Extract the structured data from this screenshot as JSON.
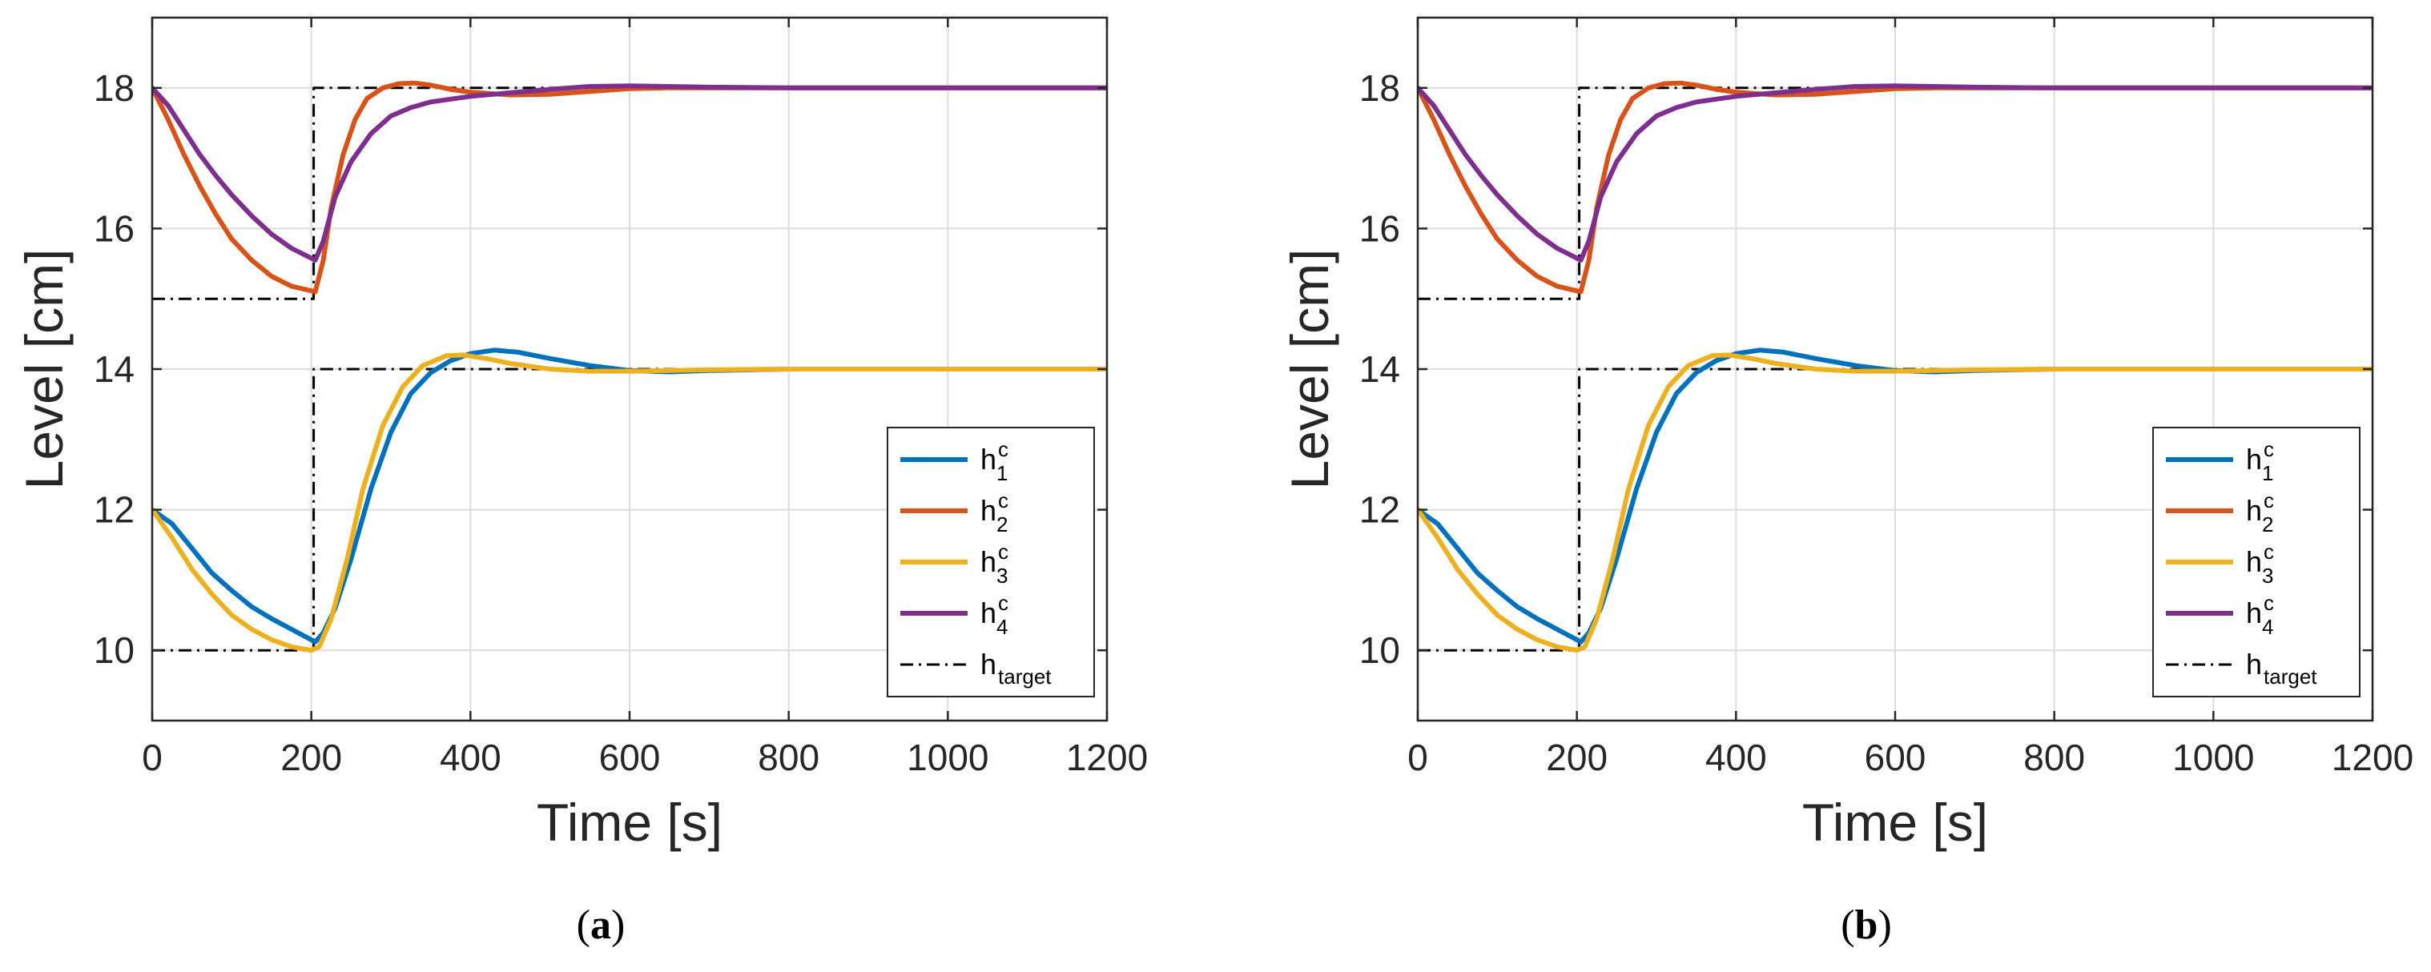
{
  "chart_data": [
    {
      "type": "line",
      "caption": "(a)",
      "caption_letter": "a",
      "xlabel": "Time [s]",
      "ylabel": "Level [cm]",
      "xlim": [
        0,
        1200
      ],
      "ylim": [
        9,
        19
      ],
      "xticks": [
        0,
        200,
        400,
        600,
        800,
        1000,
        1200
      ],
      "yticks": [
        10,
        12,
        14,
        16,
        18
      ],
      "grid": true,
      "legend_position": "bottom-right",
      "series": [
        {
          "name": "h_1^c",
          "label_base": "h",
          "label_sub": "1",
          "label_sup": "c",
          "color": "#0072BD",
          "style": "solid",
          "x": [
            0,
            25,
            50,
            75,
            100,
            125,
            150,
            175,
            205,
            215,
            230,
            250,
            275,
            300,
            325,
            350,
            375,
            400,
            430,
            460,
            500,
            550,
            600,
            650,
            700,
            800,
            900,
            1000,
            1100,
            1200
          ],
          "y": [
            12.0,
            11.8,
            11.45,
            11.1,
            10.85,
            10.62,
            10.45,
            10.3,
            10.12,
            10.25,
            10.6,
            11.3,
            12.3,
            13.1,
            13.65,
            13.95,
            14.12,
            14.22,
            14.27,
            14.24,
            14.15,
            14.05,
            13.98,
            13.96,
            13.98,
            14.0,
            14.0,
            14.0,
            14.0,
            14.0
          ]
        },
        {
          "name": "h_2^c",
          "label_base": "h",
          "label_sub": "2",
          "label_sup": "c",
          "color": "#D95319",
          "style": "solid",
          "x": [
            0,
            20,
            40,
            60,
            80,
            100,
            125,
            150,
            175,
            205,
            215,
            225,
            240,
            255,
            270,
            290,
            310,
            330,
            350,
            375,
            400,
            450,
            500,
            550,
            600,
            650,
            700,
            800,
            1000,
            1200
          ],
          "y": [
            18.0,
            17.55,
            17.05,
            16.6,
            16.2,
            15.85,
            15.55,
            15.32,
            15.18,
            15.1,
            15.55,
            16.3,
            17.05,
            17.55,
            17.85,
            18.0,
            18.06,
            18.07,
            18.04,
            17.98,
            17.94,
            17.9,
            17.91,
            17.95,
            17.99,
            18.0,
            18.0,
            18.0,
            18.0,
            18.0
          ]
        },
        {
          "name": "h_3^c",
          "label_base": "h",
          "label_sub": "3",
          "label_sup": "c",
          "color": "#EDB120",
          "style": "solid",
          "x": [
            0,
            25,
            50,
            75,
            100,
            125,
            150,
            175,
            200,
            210,
            225,
            245,
            265,
            290,
            315,
            340,
            370,
            390,
            420,
            450,
            500,
            550,
            600,
            700,
            800,
            1000,
            1200
          ],
          "y": [
            12.0,
            11.6,
            11.15,
            10.8,
            10.5,
            10.3,
            10.15,
            10.05,
            10.0,
            10.05,
            10.45,
            11.3,
            12.3,
            13.2,
            13.75,
            14.05,
            14.19,
            14.2,
            14.15,
            14.08,
            14.0,
            13.97,
            13.97,
            13.99,
            14.0,
            14.0,
            14.0
          ]
        },
        {
          "name": "h_4^c",
          "label_base": "h",
          "label_sub": "4",
          "label_sup": "c",
          "color": "#7E2F8E",
          "style": "solid",
          "x": [
            0,
            20,
            40,
            60,
            80,
            100,
            125,
            150,
            175,
            205,
            215,
            230,
            250,
            275,
            300,
            325,
            350,
            400,
            450,
            500,
            550,
            600,
            650,
            700,
            800,
            1000,
            1200
          ],
          "y": [
            18.0,
            17.75,
            17.4,
            17.05,
            16.75,
            16.48,
            16.18,
            15.92,
            15.72,
            15.55,
            15.82,
            16.45,
            16.95,
            17.35,
            17.6,
            17.72,
            17.8,
            17.88,
            17.93,
            17.98,
            18.02,
            18.03,
            18.02,
            18.01,
            18.0,
            18.0,
            18.0
          ]
        },
        {
          "name": "h_target",
          "label_base": "h",
          "label_sub": "target",
          "label_sup": "",
          "color": "#000000",
          "style": "dashdot",
          "x": [
            0,
            203,
            203,
            1200
          ],
          "y": [
            15.0,
            15.0,
            18.0,
            18.0
          ]
        },
        {
          "name": "h_target_lower",
          "legend": false,
          "color": "#000000",
          "style": "dashdot",
          "x": [
            0,
            203,
            203,
            1200
          ],
          "y": [
            10.0,
            10.0,
            14.0,
            14.0
          ]
        }
      ]
    },
    {
      "type": "line",
      "caption": "(b)",
      "caption_letter": "b",
      "xlabel": "Time [s]",
      "ylabel": "Level [cm]",
      "xlim": [
        0,
        1200
      ],
      "ylim": [
        9,
        19
      ],
      "xticks": [
        0,
        200,
        400,
        600,
        800,
        1000,
        1200
      ],
      "yticks": [
        10,
        12,
        14,
        16,
        18
      ],
      "grid": true,
      "legend_position": "bottom-right",
      "series": [
        {
          "name": "h_1^c",
          "label_base": "h",
          "label_sub": "1",
          "label_sup": "c",
          "color": "#0072BD",
          "style": "solid",
          "x": [
            0,
            25,
            50,
            75,
            100,
            125,
            150,
            175,
            205,
            215,
            230,
            250,
            275,
            300,
            325,
            350,
            375,
            400,
            430,
            460,
            500,
            550,
            600,
            650,
            700,
            800,
            900,
            1000,
            1100,
            1200
          ],
          "y": [
            12.0,
            11.8,
            11.45,
            11.1,
            10.85,
            10.62,
            10.45,
            10.3,
            10.12,
            10.25,
            10.6,
            11.3,
            12.3,
            13.1,
            13.65,
            13.95,
            14.12,
            14.22,
            14.27,
            14.24,
            14.15,
            14.05,
            13.98,
            13.96,
            13.98,
            14.0,
            14.0,
            14.0,
            14.0,
            14.0
          ]
        },
        {
          "name": "h_2^c",
          "label_base": "h",
          "label_sub": "2",
          "label_sup": "c",
          "color": "#D95319",
          "style": "solid",
          "x": [
            0,
            20,
            40,
            60,
            80,
            100,
            125,
            150,
            175,
            205,
            215,
            225,
            240,
            255,
            270,
            290,
            310,
            330,
            350,
            375,
            400,
            450,
            500,
            550,
            600,
            650,
            700,
            800,
            1000,
            1200
          ],
          "y": [
            18.0,
            17.55,
            17.05,
            16.6,
            16.2,
            15.85,
            15.55,
            15.32,
            15.18,
            15.1,
            15.55,
            16.3,
            17.05,
            17.55,
            17.85,
            18.0,
            18.06,
            18.07,
            18.04,
            17.98,
            17.94,
            17.9,
            17.91,
            17.95,
            17.99,
            18.0,
            18.0,
            18.0,
            18.0,
            18.0
          ]
        },
        {
          "name": "h_3^c",
          "label_base": "h",
          "label_sub": "3",
          "label_sup": "c",
          "color": "#EDB120",
          "style": "solid",
          "x": [
            0,
            25,
            50,
            75,
            100,
            125,
            150,
            175,
            200,
            210,
            225,
            245,
            265,
            290,
            315,
            340,
            370,
            390,
            420,
            450,
            500,
            550,
            600,
            700,
            800,
            1000,
            1200
          ],
          "y": [
            12.0,
            11.6,
            11.15,
            10.8,
            10.5,
            10.3,
            10.15,
            10.05,
            10.0,
            10.05,
            10.45,
            11.3,
            12.3,
            13.2,
            13.75,
            14.05,
            14.19,
            14.2,
            14.15,
            14.08,
            14.0,
            13.97,
            13.97,
            13.99,
            14.0,
            14.0,
            14.0
          ]
        },
        {
          "name": "h_4^c",
          "label_base": "h",
          "label_sub": "4",
          "label_sup": "c",
          "color": "#7E2F8E",
          "style": "solid",
          "x": [
            0,
            20,
            40,
            60,
            80,
            100,
            125,
            150,
            175,
            205,
            215,
            230,
            250,
            275,
            300,
            325,
            350,
            400,
            450,
            500,
            550,
            600,
            650,
            700,
            800,
            1000,
            1200
          ],
          "y": [
            18.0,
            17.75,
            17.4,
            17.05,
            16.75,
            16.48,
            16.18,
            15.92,
            15.72,
            15.55,
            15.82,
            16.45,
            16.95,
            17.35,
            17.6,
            17.72,
            17.8,
            17.88,
            17.93,
            17.98,
            18.02,
            18.03,
            18.02,
            18.01,
            18.0,
            18.0,
            18.0
          ]
        },
        {
          "name": "h_target",
          "label_base": "h",
          "label_sub": "target",
          "label_sup": "",
          "color": "#000000",
          "style": "dashdot",
          "x": [
            0,
            203,
            203,
            1200
          ],
          "y": [
            15.0,
            15.0,
            18.0,
            18.0
          ]
        },
        {
          "name": "h_target_lower",
          "legend": false,
          "color": "#000000",
          "style": "dashdot",
          "x": [
            0,
            203,
            203,
            1200
          ],
          "y": [
            10.0,
            10.0,
            14.0,
            14.0
          ]
        }
      ]
    }
  ]
}
